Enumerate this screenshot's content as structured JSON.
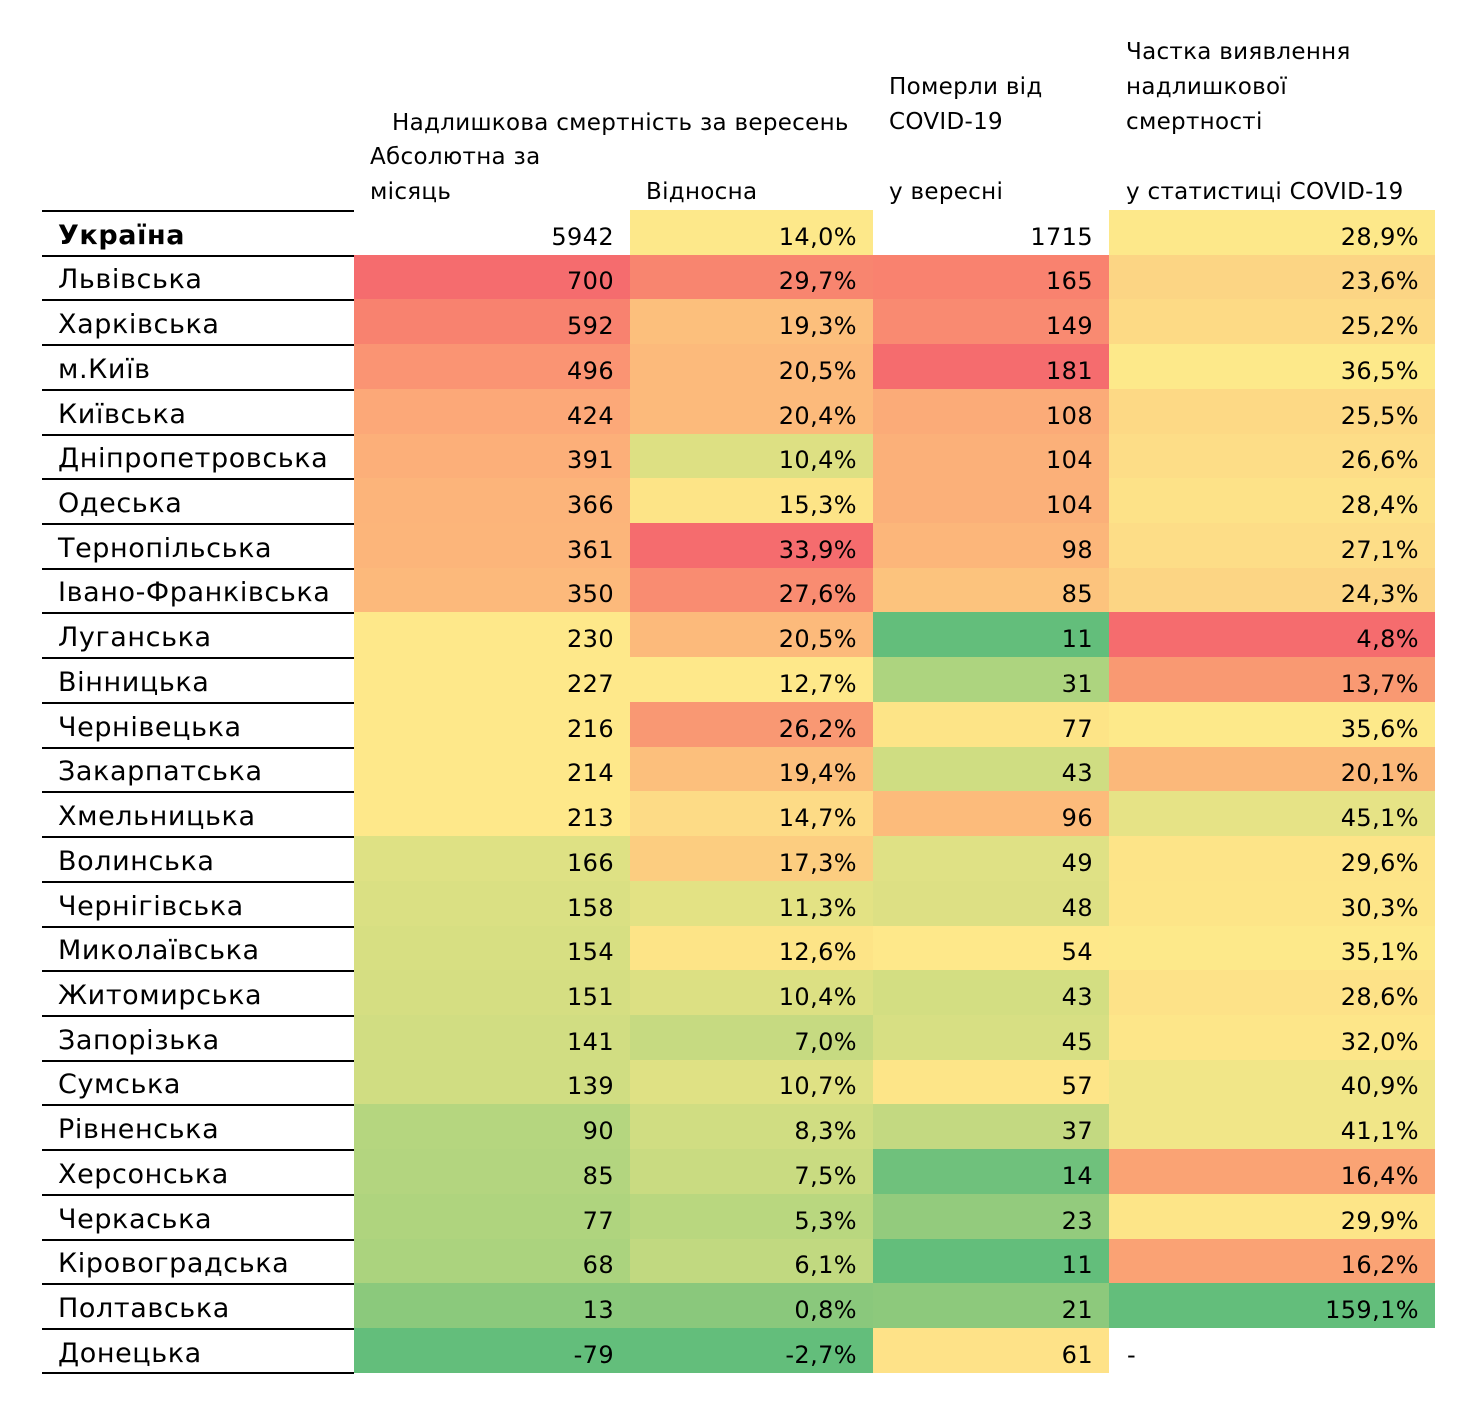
{
  "header": {
    "title": "Надлишкова смертність за вересень",
    "col_absolute": [
      "Абсолютна за",
      "місяць"
    ],
    "col_relative": "Відносна",
    "col_covid": [
      "Померли від",
      "COVID-19",
      "у вересні"
    ],
    "col_share": [
      "Частка виявлення",
      "надлишкової",
      "смертності",
      "у статистиці COVID-19"
    ]
  },
  "rows": [
    {
      "region": "Україна",
      "absolute": "5942",
      "relative": "14,0%",
      "covid": "1715",
      "share": "28,9%",
      "bold": true,
      "colors": [
        "#ffffff",
        "#fde88a",
        "#ffffff",
        "#fde88a"
      ]
    },
    {
      "region": "Львівська",
      "absolute": "700",
      "relative": "29,7%",
      "covid": "165",
      "share": "23,6%",
      "colors": [
        "#f56c6e",
        "#f8856f",
        "#f9826f",
        "#fcd584"
      ]
    },
    {
      "region": "Харківська",
      "absolute": "592",
      "relative": "19,3%",
      "covid": "149",
      "share": "25,2%",
      "colors": [
        "#f8826f",
        "#fcbf7c",
        "#f98a71",
        "#fdda85"
      ]
    },
    {
      "region": "м.Київ",
      "absolute": "496",
      "relative": "20,5%",
      "covid": "181",
      "share": "36,5%",
      "colors": [
        "#fa9473",
        "#fcba7b",
        "#f56c6e",
        "#fde98a"
      ]
    },
    {
      "region": "Київська",
      "absolute": "424",
      "relative": "20,4%",
      "covid": "108",
      "share": "25,5%",
      "colors": [
        "#fca878",
        "#fcba7b",
        "#fbab78",
        "#fdd985"
      ]
    },
    {
      "region": "Дніпропетровська",
      "absolute": "391",
      "relative": "10,4%",
      "covid": "104",
      "share": "26,6%",
      "colors": [
        "#fcaf79",
        "#dde083",
        "#fbb079",
        "#fddd87"
      ]
    },
    {
      "region": "Одеська",
      "absolute": "366",
      "relative": "15,3%",
      "covid": "104",
      "share": "28,4%",
      "colors": [
        "#fcb47a",
        "#fde487",
        "#fbb079",
        "#fde288"
      ]
    },
    {
      "region": "Тернопільська",
      "absolute": "361",
      "relative": "33,9%",
      "covid": "98",
      "share": "27,1%",
      "colors": [
        "#fcb57a",
        "#f56c6e",
        "#fcb67a",
        "#fddd87"
      ]
    },
    {
      "region": "Івано-Франківська",
      "absolute": "350",
      "relative": "27,6%",
      "covid": "85",
      "share": "24,3%",
      "colors": [
        "#fcb97b",
        "#f98c71",
        "#fcc37d",
        "#fcd584"
      ]
    },
    {
      "region": "Луганська",
      "absolute": "230",
      "relative": "20,5%",
      "covid": "11",
      "share": "4,8%",
      "colors": [
        "#fee88a",
        "#fcba7b",
        "#63be7b",
        "#f56c6e"
      ]
    },
    {
      "region": "Вінницька",
      "absolute": "227",
      "relative": "12,7%",
      "covid": "31",
      "share": "13,7%",
      "colors": [
        "#fee88a",
        "#fee88a",
        "#add47f",
        "#f99972"
      ]
    },
    {
      "region": "Чернівецька",
      "absolute": "216",
      "relative": "26,2%",
      "covid": "77",
      "share": "35,6%",
      "colors": [
        "#fee88a",
        "#f99873",
        "#fde487",
        "#fde98a"
      ]
    },
    {
      "region": "Закарпатська",
      "absolute": "214",
      "relative": "19,4%",
      "covid": "43",
      "share": "20,1%",
      "colors": [
        "#fee88a",
        "#fcbf7c",
        "#cfdd82",
        "#fbb87a"
      ]
    },
    {
      "region": "Хмельницька",
      "absolute": "213",
      "relative": "14,7%",
      "covid": "96",
      "share": "45,1%",
      "colors": [
        "#fee88a",
        "#fddb86",
        "#fcbb7b",
        "#e6e386"
      ]
    },
    {
      "region": "Волинська",
      "absolute": "166",
      "relative": "17,3%",
      "covid": "49",
      "share": "29,6%",
      "colors": [
        "#dee184",
        "#fccd80",
        "#dfe185",
        "#fde488"
      ]
    },
    {
      "region": "Чернігівська",
      "absolute": "158",
      "relative": "11,3%",
      "covid": "48",
      "share": "30,3%",
      "colors": [
        "#dae083",
        "#e3e284",
        "#dde084",
        "#fde588"
      ]
    },
    {
      "region": "Миколаївська",
      "absolute": "154",
      "relative": "12,6%",
      "covid": "54",
      "share": "35,1%",
      "colors": [
        "#d7df82",
        "#fde487",
        "#fee88a",
        "#fde98a"
      ]
    },
    {
      "region": "Житомирська",
      "absolute": "151",
      "relative": "10,4%",
      "covid": "43",
      "share": "28,6%",
      "colors": [
        "#d5de82",
        "#dce083",
        "#d3de82",
        "#fde288"
      ]
    },
    {
      "region": "Запорізька",
      "absolute": "141",
      "relative": "7,0%",
      "covid": "45",
      "share": "32,0%",
      "colors": [
        "#d1dd82",
        "#c6da81",
        "#d7df83",
        "#fde689"
      ]
    },
    {
      "region": "Сумська",
      "absolute": "139",
      "relative": "10,7%",
      "covid": "57",
      "share": "40,9%",
      "colors": [
        "#d0dd82",
        "#dfe184",
        "#fde588",
        "#f1e688"
      ]
    },
    {
      "region": "Рівненська",
      "absolute": "90",
      "relative": "8,3%",
      "covid": "37",
      "share": "41,1%",
      "colors": [
        "#b5d67f",
        "#d0dd82",
        "#c3d981",
        "#f1e688"
      ]
    },
    {
      "region": "Херсонська",
      "absolute": "85",
      "relative": "7,5%",
      "covid": "14",
      "share": "16,4%",
      "colors": [
        "#b3d57f",
        "#c9db81",
        "#6fc17c",
        "#faa374"
      ]
    },
    {
      "region": "Черкаська",
      "absolute": "77",
      "relative": "5,3%",
      "covid": "23",
      "share": "29,9%",
      "colors": [
        "#afd47e",
        "#b9d77f",
        "#93cb7d",
        "#fde588"
      ]
    },
    {
      "region": "Кіровоградська",
      "absolute": "68",
      "relative": "6,1%",
      "covid": "11",
      "share": "16,2%",
      "colors": [
        "#abd37e",
        "#c1d980",
        "#63be7b",
        "#faa274"
      ]
    },
    {
      "region": "Полтавська",
      "absolute": "13",
      "relative": "0,8%",
      "covid": "21",
      "share": "159,1%",
      "colors": [
        "#8bc97c",
        "#8ac87c",
        "#8dc97c",
        "#63be7b"
      ]
    },
    {
      "region": "Донецька",
      "absolute": "-79",
      "relative": "-2,7%",
      "covid": "61",
      "share": "-",
      "colors": [
        "#63be7b",
        "#63be7b",
        "#fee288",
        "#ffffff"
      ]
    }
  ]
}
